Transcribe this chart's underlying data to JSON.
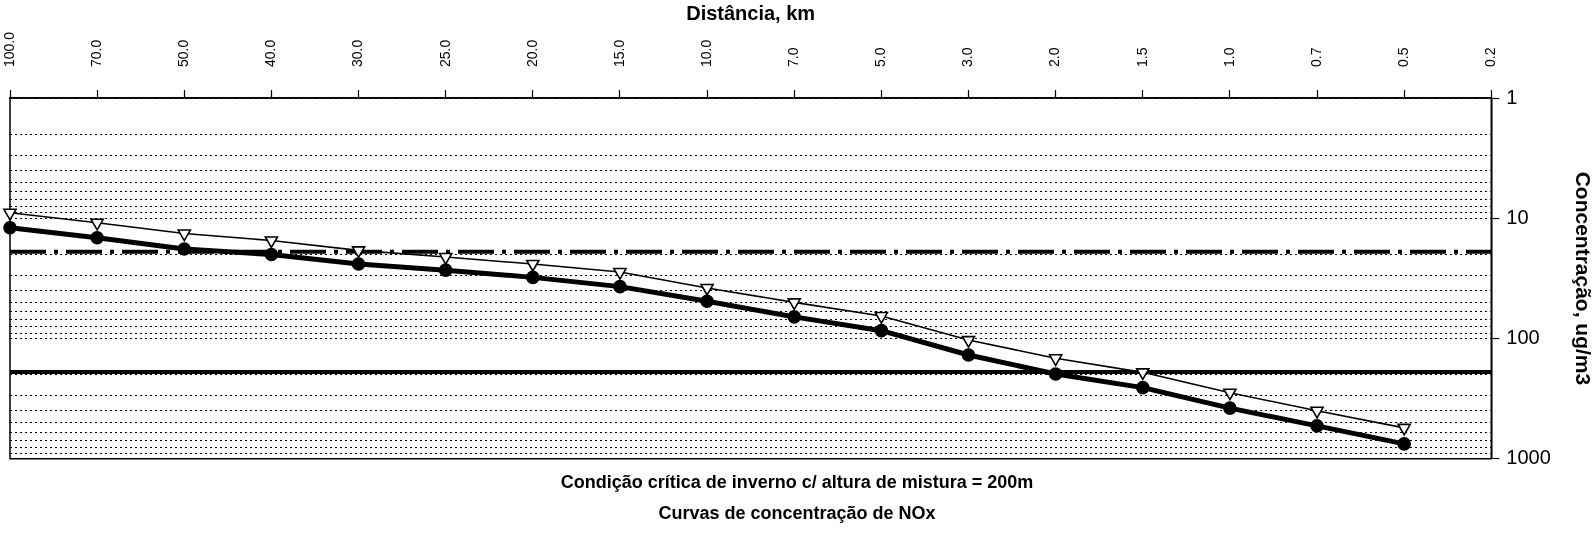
{
  "chart_data": {
    "type": "line",
    "title": "Curvas de concentração de NOx",
    "subtitle": "Condição crítica de inverno c/ altura de mistura = 200m",
    "xlabel": "Distância, km",
    "ylabel": "Concentração, ug/m3",
    "categories": [
      "100.0",
      "70.0",
      "50.0",
      "40.0",
      "30.0",
      "25.0",
      "20.0",
      "15.0",
      "10.0",
      "7.0",
      "5.0",
      "3.0",
      "2.0",
      "1.5",
      "1.0",
      "0.7",
      "0.5",
      "0.2"
    ],
    "series": [
      {
        "color": "#000000",
        "marker": "circle",
        "values": [
          12,
          14.5,
          18,
          20,
          24,
          27,
          31,
          37,
          49,
          66,
          86,
          137,
          197,
          256,
          379,
          532,
          752,
          null
        ]
      },
      {
        "color": "#000000",
        "marker": "triangle",
        "values": [
          9,
          10.9,
          13.4,
          15.3,
          18.5,
          21,
          24,
          28,
          38,
          50,
          65,
          103,
          146,
          191,
          282,
          399,
          553,
          null
        ]
      }
    ],
    "ylim": [
      1000,
      1
    ],
    "yticks": [
      1,
      {
        "value": 2,
        "label": null
      },
      {
        "value": 3,
        "label": null
      },
      {
        "value": 4,
        "label": null
      },
      {
        "value": 5,
        "label": null
      },
      {
        "value": 6,
        "label": null
      },
      {
        "value": 7,
        "label": null
      },
      {
        "value": 8,
        "label": null
      },
      {
        "value": 9,
        "label": null
      },
      10,
      {
        "value": 20,
        "label": null
      },
      {
        "value": 30,
        "label": null
      },
      {
        "value": 40,
        "label": null
      },
      {
        "value": 50,
        "label": null
      },
      {
        "value": 60,
        "label": null
      },
      {
        "value": 70,
        "label": null
      },
      {
        "value": 80,
        "label": null
      },
      {
        "value": 90,
        "label": null
      },
      100,
      {
        "value": 200,
        "label": null
      },
      {
        "value": 300,
        "label": null
      },
      {
        "value": 400,
        "label": null
      },
      {
        "value": 500,
        "label": null
      },
      {
        "value": 600,
        "label": null
      },
      {
        "value": 700,
        "label": null
      },
      {
        "value": 800,
        "label": null
      },
      {
        "value": 900,
        "label": null
      },
      1000
    ],
    "log": true,
    "grid": "y",
    "ref_lines": [
      {
        "axis": "y",
        "value": 19,
        "line_style": "dashed",
        "color": "#000000"
      },
      {
        "axis": "y",
        "value": 190,
        "line_style": "solid",
        "color": "#000000"
      }
    ]
  }
}
